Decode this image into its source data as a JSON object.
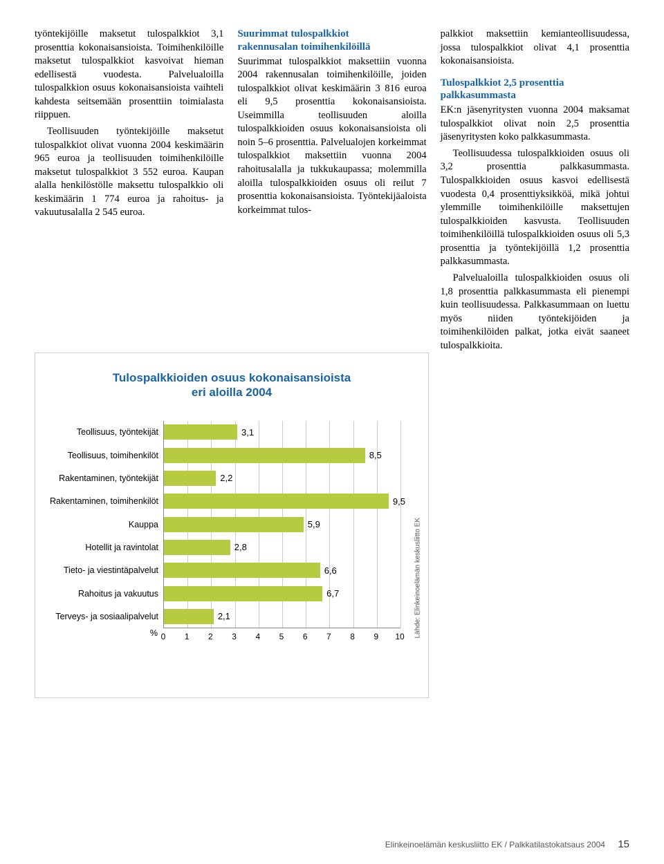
{
  "col1": {
    "p1": "työntekijöille maksetut tulospalkkiot 3,1 prosenttia kokonaisansioista. Toimihenkilöille maksetut tulospalkkiot kasvoivat hieman edellisestä vuodesta. Palvelualoilla tulospalkkion osuus kokonaisansioista vaihteli kahdesta seitsemään prosenttiin toimialasta riippuen.",
    "p2": "Teollisuuden työntekijöille maksetut tulospalkkiot olivat vuonna 2004 keskimäärin 965 euroa ja teollisuuden toimihenkilöille maksetut tulospalkkiot 3 552 euroa. Kaupan alalla henkilöstölle maksettu tulospalkkio oli keskimäärin 1 774 euroa ja rahoitus- ja vakuutusalalla 2 545 euroa."
  },
  "col2": {
    "h1a": "Suurimmat tulospalkkiot",
    "h1b": "rakennusalan toimihenkilöillä",
    "p1": "Suurimmat tulospalkkiot maksettiin vuonna 2004 rakennusalan toimihenkilöille, joiden tulospalkkiot olivat keskimäärin 3 816 euroa eli 9,5 prosenttia kokonaisansioista. Useimmilla teollisuuden aloilla tulospalkkioiden osuus kokonaisansioista oli noin 5–6 prosenttia. Palvelualojen korkeimmat tulospalkkiot maksettiin vuonna 2004 rahoitusalalla ja tukkukaupassa; molemmilla aloilla tulospalkkioiden osuus oli reilut 7 prosenttia kokonaisansioista. Työntekijäaloista korkeimmat tulos-"
  },
  "col3": {
    "p1": "palkkiot maksettiin kemianteollisuudessa, jossa tulospalkkiot olivat 4,1 prosenttia kokonaisansioista.",
    "h2a": "Tulospalkkiot 2,5 prosenttia",
    "h2b": "palkkasummasta",
    "p2": "EK:n jäsenyritysten vuonna 2004 maksamat tulospalkkiot olivat noin 2,5 prosenttia jäsenyritysten koko palkkasummasta.",
    "p3": "Teollisuudessa tulospalkkioiden osuus oli 3,2 prosenttia palkkasummasta. Tulospalkkioiden osuus kasvoi edellisestä vuodesta 0,4 prosenttiyksikköä, mikä johtui ylemmille toimihenkilöille maksettujen tulospalkkioiden kasvusta. Teollisuuden toimihenkilöillä tulospalkkioiden osuus oli 5,3 prosenttia ja työntekijöillä 1,2 prosenttia palkkasummasta.",
    "p4": "Palvelualoilla tulospalkkioiden osuus oli 1,8 prosenttia palkkasummasta eli pienempi kuin teollisuudessa. Palkkasummaan on luettu myös niiden työntekijöiden ja toimihenkilöiden palkat, jotka eivät saaneet tulospalkkioita."
  },
  "chart": {
    "title1": "Tulospalkkioiden osuus kokonaisansioista",
    "title2": "eri aloilla 2004",
    "xmax": 10,
    "bar_color": "#b6cb3f",
    "grid_color": "#cccccc",
    "axis_color": "#888888",
    "categories": [
      {
        "label": "Teollisuus, työntekijät",
        "value": 3.1,
        "vlabel": "3,1"
      },
      {
        "label": "Teollisuus, toimihenkilöt",
        "value": 8.5,
        "vlabel": "8,5"
      },
      {
        "label": "Rakentaminen, työntekijät",
        "value": 2.2,
        "vlabel": "2,2"
      },
      {
        "label": "Rakentaminen, toimihenkilöt",
        "value": 9.5,
        "vlabel": "9,5"
      },
      {
        "label": "Kauppa",
        "value": 5.9,
        "vlabel": "5,9"
      },
      {
        "label": "Hotellit ja ravintolat",
        "value": 2.8,
        "vlabel": "2,8"
      },
      {
        "label": "Tieto- ja viestintäpalvelut",
        "value": 6.6,
        "vlabel": "6,6"
      },
      {
        "label": "Rahoitus ja vakuutus",
        "value": 6.7,
        "vlabel": "6,7"
      },
      {
        "label": "Terveys- ja sosiaalipalvelut",
        "value": 2.1,
        "vlabel": "2,1"
      }
    ],
    "pct_symbol": "%",
    "source": "Lähde: Elinkeinoelämän keskusliitto EK"
  },
  "footer": {
    "text": "Elinkeinoelämän keskusliitto EK / Palkkatilastokatsaus 2004",
    "page": "15"
  }
}
